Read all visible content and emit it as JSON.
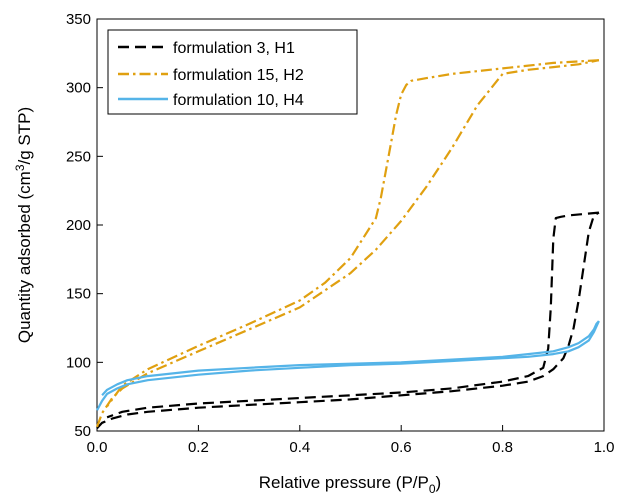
{
  "chart_data": {
    "type": "line",
    "title": "",
    "xlabel": "Relative pressure (P/P",
    "xlabel_sub": "0",
    "xlabel_end": ")",
    "ylabel_pre": "Quantity adsorbed (cm",
    "ylabel_sup": "3",
    "ylabel_post": "/g STP)",
    "xlim": [
      0,
      1.0
    ],
    "ylim": [
      50,
      350
    ],
    "xticks": [
      0.0,
      0.2,
      0.4,
      0.6,
      0.8,
      1.0
    ],
    "xtick_labels": [
      "0.0",
      "0.2",
      "0.4",
      "0.6",
      "0.8",
      "1.0"
    ],
    "yticks": [
      50,
      100,
      150,
      200,
      250,
      300,
      350
    ],
    "ytick_labels": [
      "50",
      "100",
      "150",
      "200",
      "250",
      "300",
      "350"
    ],
    "grid": false,
    "legend_position": "top-left",
    "series": [
      {
        "name": "formulation 3, H1",
        "color": "#000000",
        "line_style": "dashed",
        "adsorption": {
          "x": [
            0.0,
            0.01,
            0.03,
            0.06,
            0.1,
            0.2,
            0.3,
            0.4,
            0.5,
            0.6,
            0.7,
            0.8,
            0.85,
            0.88,
            0.9,
            0.92,
            0.93,
            0.94,
            0.95,
            0.96,
            0.97,
            0.98,
            0.99
          ],
          "y": [
            52,
            56,
            59,
            62,
            64,
            67,
            69,
            71,
            73,
            76,
            79,
            83,
            86,
            90,
            95,
            103,
            112,
            125,
            145,
            170,
            195,
            207,
            209
          ]
        },
        "desorption": {
          "x": [
            0.99,
            0.96,
            0.93,
            0.915,
            0.905,
            0.9,
            0.895,
            0.89,
            0.88,
            0.85,
            0.8,
            0.7,
            0.6,
            0.5,
            0.4,
            0.3,
            0.2,
            0.1,
            0.05,
            0.02
          ],
          "y": [
            209,
            208,
            207,
            206,
            205,
            190,
            140,
            110,
            96,
            90,
            86,
            81,
            78,
            76,
            74,
            72,
            70,
            67,
            64,
            60
          ]
        }
      },
      {
        "name": "formulation 15, H2",
        "color": "#E0A010",
        "line_style": "dash-dot",
        "adsorption": {
          "x": [
            0.0,
            0.01,
            0.03,
            0.05,
            0.1,
            0.2,
            0.3,
            0.4,
            0.5,
            0.55,
            0.6,
            0.65,
            0.7,
            0.75,
            0.8,
            0.85,
            0.9,
            0.95,
            0.99
          ],
          "y": [
            53,
            63,
            74,
            81,
            92,
            108,
            124,
            140,
            165,
            182,
            203,
            228,
            256,
            287,
            310,
            313,
            315,
            317,
            320
          ]
        },
        "desorption": {
          "x": [
            0.99,
            0.9,
            0.8,
            0.7,
            0.65,
            0.62,
            0.61,
            0.6,
            0.59,
            0.58,
            0.57,
            0.56,
            0.55,
            0.5,
            0.45,
            0.4,
            0.3,
            0.2,
            0.1,
            0.05,
            0.02
          ],
          "y": [
            320,
            318,
            314,
            310,
            307,
            305,
            302,
            295,
            280,
            260,
            240,
            220,
            205,
            176,
            158,
            145,
            128,
            112,
            95,
            83,
            68
          ]
        }
      },
      {
        "name": "formulation 10, H4",
        "color": "#55B4E8",
        "line_style": "solid",
        "adsorption": {
          "x": [
            0.0,
            0.01,
            0.02,
            0.04,
            0.06,
            0.1,
            0.2,
            0.3,
            0.4,
            0.5,
            0.6,
            0.7,
            0.8,
            0.85,
            0.9,
            0.93,
            0.95,
            0.97,
            0.98,
            0.99
          ],
          "y": [
            65,
            72,
            77,
            81,
            84,
            87,
            91,
            94,
            96,
            98,
            99,
            101,
            103,
            104,
            106,
            108,
            111,
            116,
            122,
            130
          ]
        },
        "desorption": {
          "x": [
            0.99,
            0.985,
            0.98,
            0.97,
            0.95,
            0.93,
            0.9,
            0.85,
            0.8,
            0.7,
            0.6,
            0.5,
            0.4,
            0.3,
            0.2,
            0.1,
            0.06,
            0.04,
            0.02,
            0.01
          ],
          "y": [
            130,
            128,
            124,
            119,
            114,
            111,
            108,
            106,
            104,
            102,
            100,
            99,
            98,
            96,
            94,
            90,
            87,
            84,
            80,
            76
          ]
        }
      }
    ]
  }
}
